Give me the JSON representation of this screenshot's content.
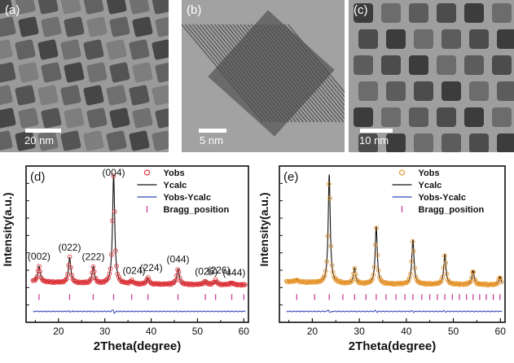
{
  "panels": {
    "a": {
      "label": "(a)",
      "scale_text": "20 nm"
    },
    "b": {
      "label": "(b)",
      "scale_text": "5 nm"
    },
    "c": {
      "label": "(c)",
      "scale_text": "10 nm"
    }
  },
  "chart_data": [
    {
      "type": "line",
      "panel_label": "(d)",
      "xlabel": "2Theta(degree)",
      "ylabel": "Intensity(a.u.)",
      "xlim": [
        13,
        61
      ],
      "x_ticks": [
        20,
        30,
        40,
        50,
        60
      ],
      "y_tick_labels": false,
      "legend_position": "top-right",
      "legend": [
        "Yobs",
        "Ycalc",
        "Yobs-Ycalc",
        "Bragg_position"
      ],
      "colors": {
        "obs": "#e0333a",
        "calc": "#111111",
        "diff": "#3347b5",
        "bragg": "#cc3d9a"
      },
      "peaks": [
        {
          "x": 15.8,
          "height": 0.14,
          "width": 0.3
        },
        {
          "x": 22.4,
          "height": 0.23,
          "width": 0.3
        },
        {
          "x": 27.5,
          "height": 0.15,
          "width": 0.3
        },
        {
          "x": 31.9,
          "height": 0.98,
          "width": 0.28
        },
        {
          "x": 35.8,
          "height": 0.03,
          "width": 0.3
        },
        {
          "x": 39.3,
          "height": 0.06,
          "width": 0.3
        },
        {
          "x": 45.8,
          "height": 0.14,
          "width": 0.32
        },
        {
          "x": 51.7,
          "height": 0.03,
          "width": 0.32
        },
        {
          "x": 53.9,
          "height": 0.04,
          "width": 0.32
        },
        {
          "x": 57.4,
          "height": 0.02,
          "width": 0.32
        }
      ],
      "annotations": [
        {
          "text": "(002)",
          "x": 15.8
        },
        {
          "text": "(022)",
          "x": 22.4
        },
        {
          "text": "(222)",
          "x": 27.5
        },
        {
          "text": "(004)",
          "x": 31.9
        },
        {
          "text": "(024)",
          "x": 36.3
        },
        {
          "text": "(224)",
          "x": 40.0
        },
        {
          "text": "(044)",
          "x": 45.8
        },
        {
          "text": "(026)",
          "x": 51.9
        },
        {
          "text": "(226)",
          "x": 54.6
        },
        {
          "text": "(444)",
          "x": 57.9
        }
      ],
      "bragg_positions": [
        15.8,
        22.4,
        27.5,
        31.9,
        35.8,
        39.3,
        45.8,
        51.7,
        53.9,
        57.4,
        60.0
      ]
    },
    {
      "type": "line",
      "panel_label": "(e)",
      "xlabel": "2Theta(degree)",
      "ylabel": "Intensity(a.u.)",
      "xlim": [
        13,
        61
      ],
      "x_ticks": [
        20,
        30,
        40,
        50,
        60
      ],
      "y_tick_labels": false,
      "legend_position": "top-right",
      "legend": [
        "Yobs",
        "Ycalc",
        "Yobs-Ycalc",
        "Bragg_position"
      ],
      "colors": {
        "obs": "#e8962c",
        "calc": "#111111",
        "diff": "#3347b5",
        "bragg": "#cc3d9a"
      },
      "peaks": [
        {
          "x": 16.7,
          "height": 0.02,
          "width": 0.3
        },
        {
          "x": 23.6,
          "height": 0.98,
          "width": 0.26
        },
        {
          "x": 29.0,
          "height": 0.14,
          "width": 0.26
        },
        {
          "x": 33.6,
          "height": 0.52,
          "width": 0.26
        },
        {
          "x": 41.4,
          "height": 0.4,
          "width": 0.28
        },
        {
          "x": 48.2,
          "height": 0.27,
          "width": 0.28
        },
        {
          "x": 54.2,
          "height": 0.13,
          "width": 0.28
        },
        {
          "x": 59.9,
          "height": 0.07,
          "width": 0.28
        }
      ],
      "bragg_positions": [
        16.7,
        20.5,
        23.6,
        26.5,
        29.0,
        31.4,
        33.6,
        35.7,
        37.8,
        39.7,
        41.4,
        43.3,
        45.0,
        46.6,
        48.2,
        49.8,
        51.3,
        52.8,
        54.2,
        55.6,
        57.0,
        58.5,
        59.9
      ]
    }
  ]
}
